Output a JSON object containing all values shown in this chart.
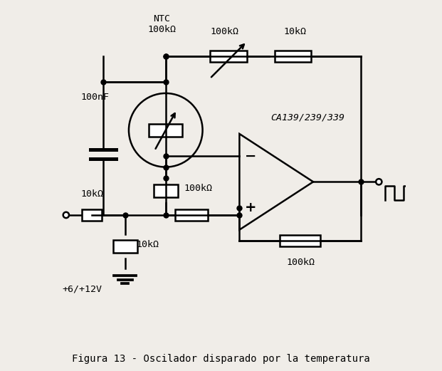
{
  "title": "Figura 13 - Oscilador disparado por la temperatura",
  "bg_color": "#f0ede8",
  "line_color": "black",
  "lw": 1.8,
  "labels": {
    "NTC": "NTC\n100kΩ",
    "C1": "100nF",
    "R_top_left": "100kΩ",
    "R_top_right": "10kΩ",
    "R_mid": "100kΩ",
    "R_bot_left": "10kΩ",
    "R_bot_right": "10kΩ",
    "R_feedback": "100kΩ",
    "IC": "CA139/239/339",
    "supply": "+6/+12V"
  }
}
